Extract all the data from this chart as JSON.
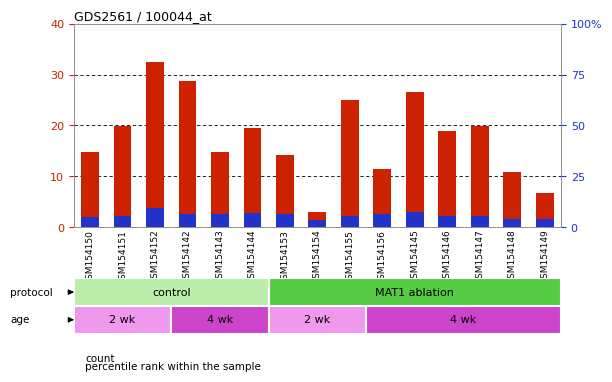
{
  "title": "GDS2561 / 100044_at",
  "samples": [
    "GSM154150",
    "GSM154151",
    "GSM154152",
    "GSM154142",
    "GSM154143",
    "GSM154144",
    "GSM154153",
    "GSM154154",
    "GSM154155",
    "GSM154156",
    "GSM154145",
    "GSM154146",
    "GSM154147",
    "GSM154148",
    "GSM154149"
  ],
  "count_values": [
    14.8,
    19.8,
    32.5,
    28.7,
    14.7,
    19.5,
    14.2,
    3.0,
    25.0,
    11.5,
    26.5,
    19.0,
    19.8,
    10.8,
    6.7
  ],
  "percentile_values": [
    5.0,
    5.5,
    9.5,
    6.5,
    6.5,
    7.0,
    6.5,
    3.5,
    5.5,
    6.5,
    7.5,
    5.5,
    5.5,
    4.0,
    4.0
  ],
  "red_color": "#cc2200",
  "blue_color": "#2233cc",
  "left_ylim": [
    0,
    40
  ],
  "right_ylim": [
    0,
    100
  ],
  "left_yticks": [
    0,
    10,
    20,
    30,
    40
  ],
  "right_yticks": [
    0,
    25,
    50,
    75,
    100
  ],
  "right_yticklabels": [
    "0",
    "25",
    "50",
    "75",
    "100%"
  ],
  "bar_width": 0.55,
  "protocol_groups": [
    {
      "label": "control",
      "start": 0,
      "end": 6,
      "color": "#bbeeaa"
    },
    {
      "label": "MAT1 ablation",
      "start": 6,
      "end": 15,
      "color": "#55cc44"
    }
  ],
  "age_groups": [
    {
      "label": "2 wk",
      "start": 0,
      "end": 3,
      "color": "#ee99ee"
    },
    {
      "label": "4 wk",
      "start": 3,
      "end": 6,
      "color": "#cc44cc"
    },
    {
      "label": "2 wk",
      "start": 6,
      "end": 9,
      "color": "#ee99ee"
    },
    {
      "label": "4 wk",
      "start": 9,
      "end": 15,
      "color": "#cc44cc"
    }
  ],
  "protocol_label": "protocol",
  "age_label": "age",
  "legend_count_label": "count",
  "legend_percentile_label": "percentile rank within the sample",
  "sample_bg_color": "#cccccc",
  "plot_bg_color": "#ffffff",
  "grid_color": "#000000",
  "tick_label_color_left": "#cc2200",
  "tick_label_color_right": "#2233cc"
}
